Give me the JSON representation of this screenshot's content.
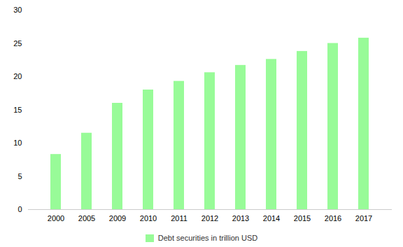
{
  "chart_data": {
    "type": "bar",
    "categories": [
      "2000",
      "2005",
      "2009",
      "2010",
      "2011",
      "2012",
      "2013",
      "2014",
      "2015",
      "2016",
      "2017"
    ],
    "series": [
      {
        "name": "Debt securities in trillion USD",
        "color": "#98FB98",
        "values": [
          8.3,
          11.5,
          16.0,
          18.0,
          19.3,
          20.6,
          21.7,
          22.6,
          23.8,
          25.0,
          25.8
        ]
      }
    ],
    "ylim": [
      0,
      30
    ],
    "yticks": [
      0,
      5,
      10,
      15,
      20,
      25,
      30
    ],
    "grid": false,
    "legend": "bottom"
  }
}
